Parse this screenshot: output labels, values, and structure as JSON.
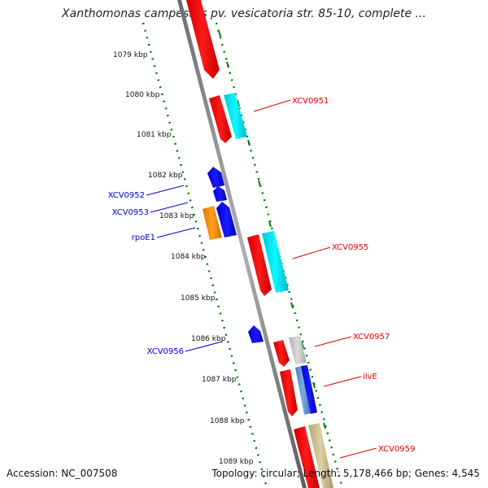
{
  "header": {
    "title": "Xanthomonas campestris pv. vesicatoria str. 85-10, complete ..."
  },
  "footer": {
    "accession": "Accession: NC_007508",
    "summary": "Topology: circular; Length: 5,178,466 bp; Genes: 4,545"
  },
  "map": {
    "ticks": [
      "1079 kbp",
      "1080 kbp",
      "1081 kbp",
      "1082 kbp",
      "1083 kbp",
      "1084 kbp",
      "1085 kbp",
      "1086 kbp",
      "1087 kbp",
      "1088 kbp",
      "1089 kbp"
    ],
    "gene_labels": [
      {
        "text": "XCV0951",
        "color": "#dd0000"
      },
      {
        "text": "XCV0952",
        "color": "#0000cc"
      },
      {
        "text": "XCV0953",
        "color": "#0000cc"
      },
      {
        "text": "rpoE1",
        "color": "#0000cc"
      },
      {
        "text": "XCV0955",
        "color": "#dd0000"
      },
      {
        "text": "XCV0956",
        "color": "#0000cc"
      },
      {
        "text": "XCV0957",
        "color": "#dd0000"
      },
      {
        "text": "ilvE",
        "color": "#dd0000"
      },
      {
        "text": "XCV0959",
        "color": "#dd0000"
      }
    ],
    "colors": {
      "forward_gene": "#ff0000",
      "reverse_gene": "#0000ff",
      "cog_cyan": "#00e5ee",
      "cog_orange": "#ff8c00",
      "cog_gray": "#c8c8c8",
      "cog_steelblue": "#5b8fc7",
      "cog_khaki": "#c8b98a",
      "backbone": "#808080",
      "tick_green": "#008000"
    }
  }
}
